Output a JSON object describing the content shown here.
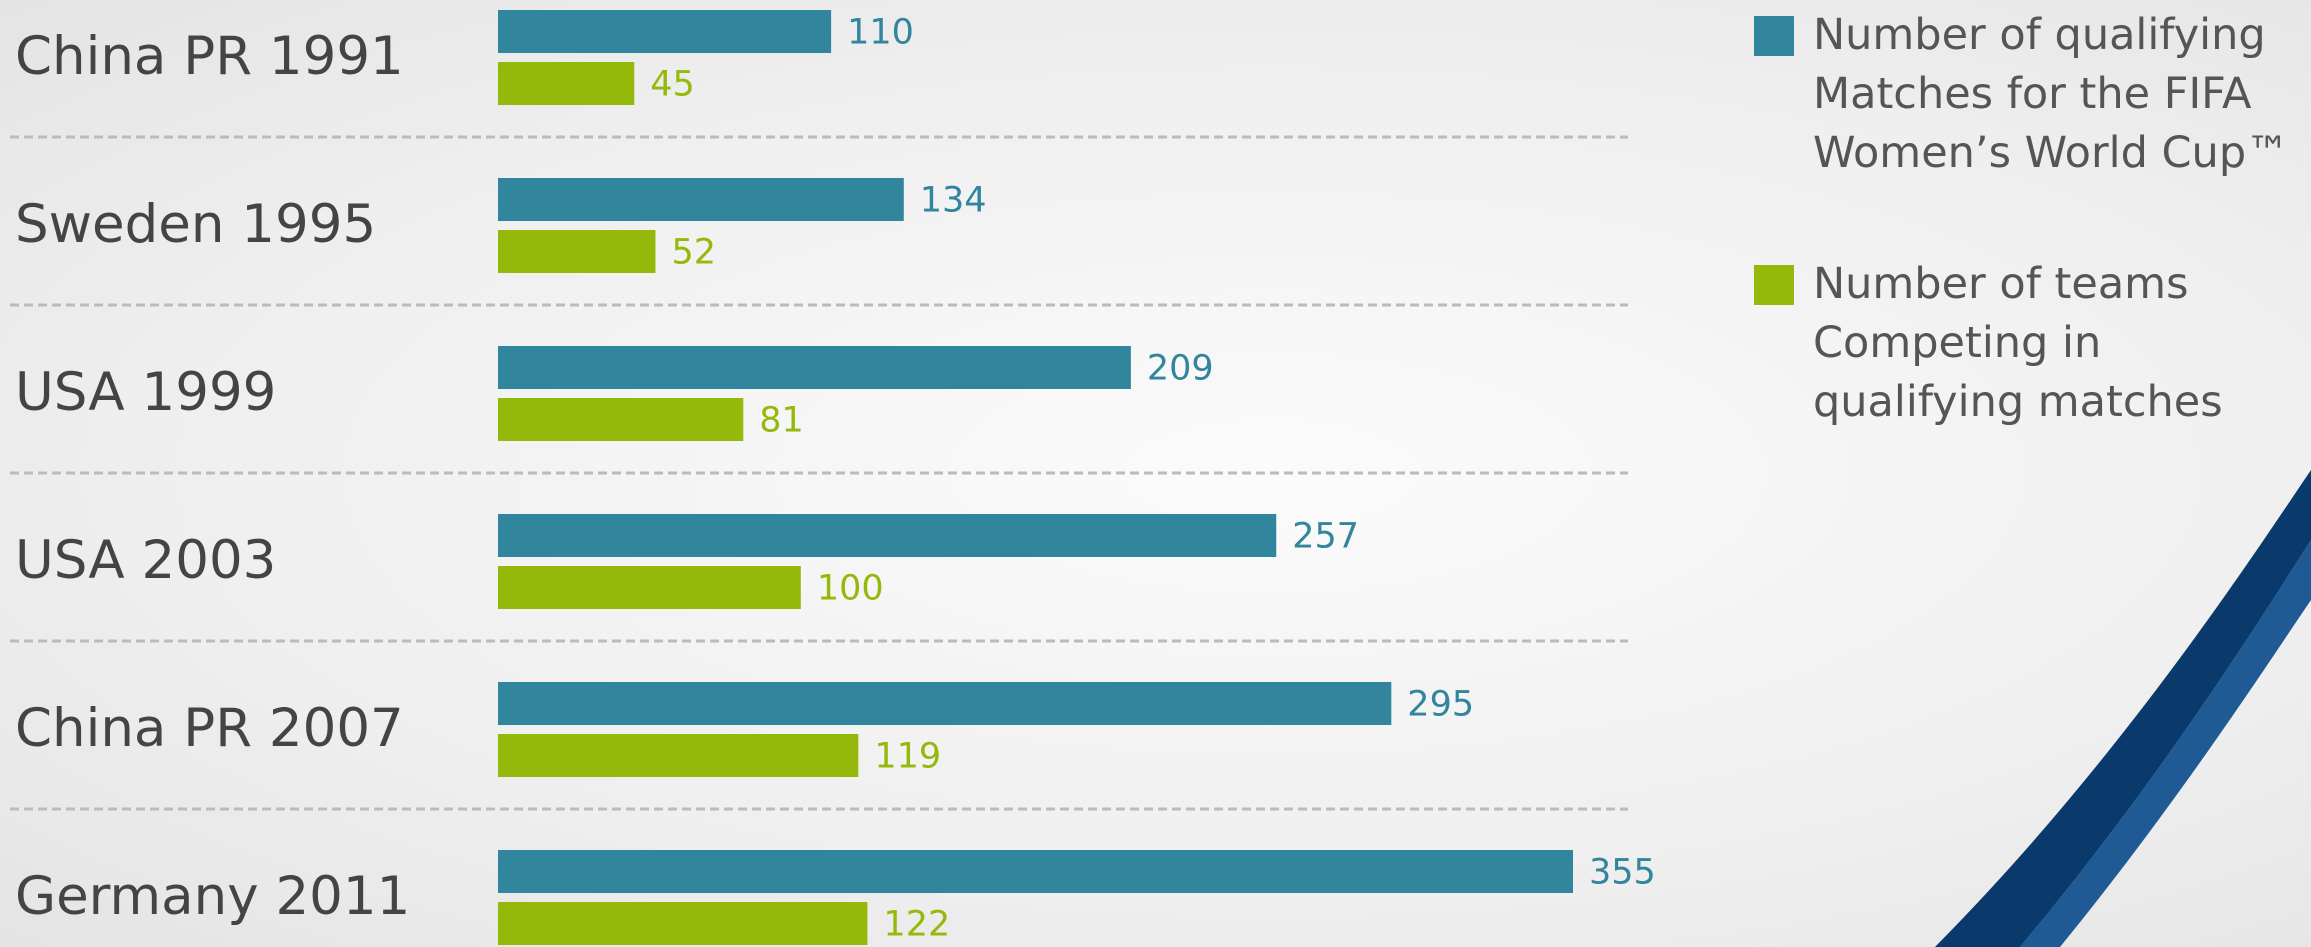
{
  "chart_data": {
    "type": "hbar",
    "categories": [
      "China PR 1991",
      "Sweden 1995",
      "USA 1999",
      "USA 2003",
      "China PR 2007",
      "Germany 2011"
    ],
    "series": [
      {
        "name": "Number of qualifying Matches for the FIFA Women’s World Cup™",
        "color": "#31859c",
        "values": [
          110,
          134,
          209,
          257,
          295,
          355
        ]
      },
      {
        "name": "Number of teams Competing in qualifying matches",
        "color": "#95b90b",
        "values": [
          45,
          52,
          81,
          100,
          119,
          122
        ]
      }
    ],
    "grid": true,
    "legend": "top-right"
  }
}
